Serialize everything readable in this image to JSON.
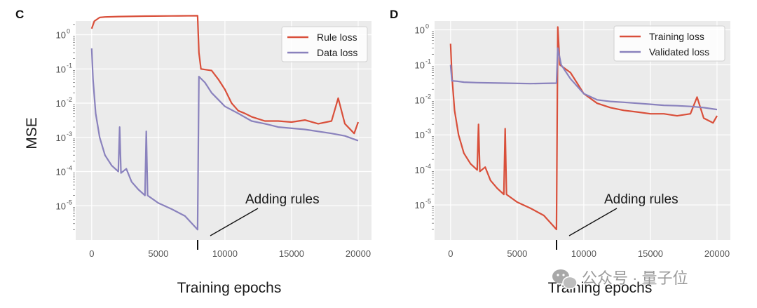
{
  "chart_data": [
    {
      "type": "line",
      "panel_label": "C",
      "ylabel": "MSE",
      "xlabel": "Training epochs",
      "yscale": "log",
      "ylim_exp": [
        -6,
        0.4
      ],
      "xlim": [
        -1200,
        21000
      ],
      "x_ticks": [
        0,
        5000,
        10000,
        15000,
        20000
      ],
      "y_ticks": [
        {
          "base": "10",
          "exp": "0",
          "value": 1
        },
        {
          "base": "10",
          "exp": "-1",
          "value": 0.1
        },
        {
          "base": "10",
          "exp": "-2",
          "value": 0.01
        },
        {
          "base": "10",
          "exp": "-3",
          "value": 0.001
        },
        {
          "base": "10",
          "exp": "-4",
          "value": 0.0001
        },
        {
          "base": "10",
          "exp": "-5",
          "value": 1e-05
        }
      ],
      "annotation": {
        "text": "Adding rules",
        "x": 8000
      },
      "legend": {
        "position": "top-right"
      },
      "series": [
        {
          "name": "Rule loss",
          "color": "#d94f3a",
          "points": [
            [
              0,
              1.5
            ],
            [
              200,
              2.5
            ],
            [
              600,
              3.2
            ],
            [
              1000,
              3.3
            ],
            [
              2000,
              3.4
            ],
            [
              4000,
              3.5
            ],
            [
              6000,
              3.55
            ],
            [
              7950,
              3.6
            ],
            [
              8050,
              0.3
            ],
            [
              8200,
              0.1
            ],
            [
              9000,
              0.09
            ],
            [
              9500,
              0.05
            ],
            [
              10000,
              0.025
            ],
            [
              10500,
              0.01
            ],
            [
              11000,
              0.006
            ],
            [
              11500,
              0.005
            ],
            [
              12000,
              0.004
            ],
            [
              13000,
              0.003
            ],
            [
              14000,
              0.003
            ],
            [
              15000,
              0.0028
            ],
            [
              16000,
              0.0032
            ],
            [
              17000,
              0.0025
            ],
            [
              18000,
              0.003
            ],
            [
              18500,
              0.014
            ],
            [
              19000,
              0.0025
            ],
            [
              19700,
              0.0013
            ],
            [
              20000,
              0.0028
            ]
          ]
        },
        {
          "name": "Data loss",
          "color": "#8a82bd",
          "points": [
            [
              0,
              0.4
            ],
            [
              100,
              0.05
            ],
            [
              300,
              0.005
            ],
            [
              600,
              0.001
            ],
            [
              1000,
              0.0003
            ],
            [
              1500,
              0.00015
            ],
            [
              2000,
              0.0001
            ],
            [
              2100,
              0.002
            ],
            [
              2200,
              9e-05
            ],
            [
              2600,
              0.00012
            ],
            [
              3000,
              5e-05
            ],
            [
              3500,
              3e-05
            ],
            [
              4000,
              2e-05
            ],
            [
              4100,
              0.0015
            ],
            [
              4200,
              2e-05
            ],
            [
              5000,
              1.2e-05
            ],
            [
              6000,
              8e-06
            ],
            [
              7000,
              5e-06
            ],
            [
              7950,
              2e-06
            ],
            [
              8050,
              0.06
            ],
            [
              8500,
              0.04
            ],
            [
              9000,
              0.02
            ],
            [
              10000,
              0.008
            ],
            [
              11000,
              0.005
            ],
            [
              12000,
              0.003
            ],
            [
              13000,
              0.0025
            ],
            [
              14000,
              0.002
            ],
            [
              16000,
              0.0017
            ],
            [
              18000,
              0.0013
            ],
            [
              19000,
              0.0011
            ],
            [
              20000,
              0.0008
            ]
          ]
        }
      ]
    },
    {
      "type": "line",
      "panel_label": "D",
      "ylabel": "",
      "xlabel": "Training epochs",
      "yscale": "log",
      "ylim_exp": [
        -6,
        0.25
      ],
      "xlim": [
        -1200,
        21000
      ],
      "x_ticks": [
        0,
        5000,
        10000,
        15000,
        20000
      ],
      "y_ticks": [
        {
          "base": "10",
          "exp": "0",
          "value": 1
        },
        {
          "base": "10",
          "exp": "-1",
          "value": 0.1
        },
        {
          "base": "10",
          "exp": "-2",
          "value": 0.01
        },
        {
          "base": "10",
          "exp": "-3",
          "value": 0.001
        },
        {
          "base": "10",
          "exp": "-4",
          "value": 0.0001
        },
        {
          "base": "10",
          "exp": "-5",
          "value": 1e-05
        }
      ],
      "annotation": {
        "text": "Adding rules",
        "x": 8000
      },
      "legend": {
        "position": "top-right"
      },
      "series": [
        {
          "name": "Training loss",
          "color": "#d94f3a",
          "points": [
            [
              0,
              0.4
            ],
            [
              100,
              0.05
            ],
            [
              300,
              0.005
            ],
            [
              600,
              0.001
            ],
            [
              1000,
              0.0003
            ],
            [
              1500,
              0.00015
            ],
            [
              2000,
              0.0001
            ],
            [
              2100,
              0.002
            ],
            [
              2200,
              9e-05
            ],
            [
              2600,
              0.00012
            ],
            [
              3000,
              5e-05
            ],
            [
              3500,
              3e-05
            ],
            [
              4000,
              2e-05
            ],
            [
              4100,
              0.0015
            ],
            [
              4200,
              2e-05
            ],
            [
              5000,
              1.2e-05
            ],
            [
              6000,
              8e-06
            ],
            [
              7000,
              5e-06
            ],
            [
              7950,
              2e-06
            ],
            [
              8050,
              1.2
            ],
            [
              8200,
              0.1
            ],
            [
              9000,
              0.06
            ],
            [
              9500,
              0.03
            ],
            [
              10000,
              0.015
            ],
            [
              11000,
              0.008
            ],
            [
              12000,
              0.006
            ],
            [
              13000,
              0.005
            ],
            [
              14000,
              0.0045
            ],
            [
              15000,
              0.004
            ],
            [
              16000,
              0.004
            ],
            [
              17000,
              0.0035
            ],
            [
              18000,
              0.004
            ],
            [
              18500,
              0.012
            ],
            [
              19000,
              0.003
            ],
            [
              19700,
              0.0022
            ],
            [
              20000,
              0.0035
            ]
          ]
        },
        {
          "name": "Validated loss",
          "color": "#8a82bd",
          "points": [
            [
              0,
              0.1
            ],
            [
              100,
              0.035
            ],
            [
              500,
              0.034
            ],
            [
              1000,
              0.032
            ],
            [
              2000,
              0.031
            ],
            [
              4000,
              0.03
            ],
            [
              6000,
              0.029
            ],
            [
              7950,
              0.03
            ],
            [
              8050,
              0.3
            ],
            [
              8300,
              0.1
            ],
            [
              9000,
              0.04
            ],
            [
              10000,
              0.015
            ],
            [
              11000,
              0.01
            ],
            [
              12000,
              0.009
            ],
            [
              13000,
              0.0085
            ],
            [
              14000,
              0.008
            ],
            [
              15000,
              0.0075
            ],
            [
              16000,
              0.007
            ],
            [
              17000,
              0.0068
            ],
            [
              18000,
              0.0065
            ],
            [
              19000,
              0.006
            ],
            [
              20000,
              0.0053
            ]
          ]
        }
      ]
    }
  ],
  "watermark": {
    "icon": "wechat-icon",
    "text": "公众号 · 量子位"
  }
}
